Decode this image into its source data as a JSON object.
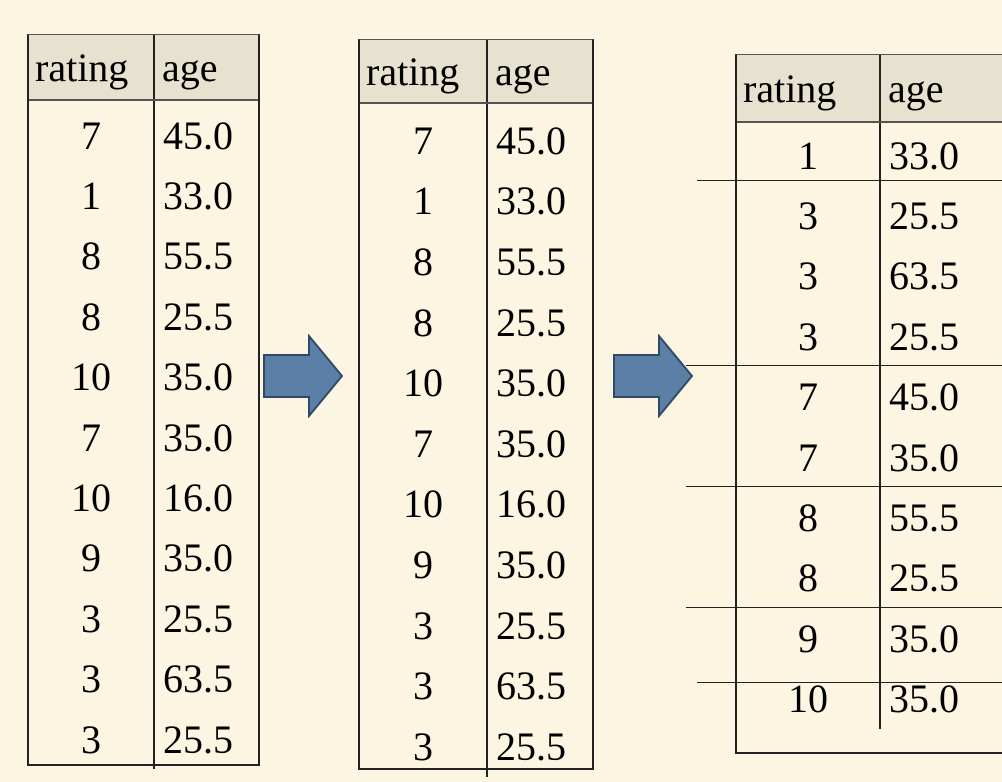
{
  "table_before": {
    "headers": [
      "rating",
      "age"
    ],
    "rows": [
      [
        "7",
        "45.0"
      ],
      [
        "1",
        "33.0"
      ],
      [
        "8",
        "55.5"
      ],
      [
        "8",
        "25.5"
      ],
      [
        "10",
        "35.0"
      ],
      [
        "7",
        "35.0"
      ],
      [
        "10",
        "16.0"
      ],
      [
        "9",
        "35.0"
      ],
      [
        "3",
        "25.5"
      ],
      [
        "3",
        "63.5"
      ],
      [
        "3",
        "25.5"
      ]
    ]
  },
  "table_middle": {
    "headers": [
      "rating",
      "age"
    ],
    "rows": [
      [
        "7",
        "45.0"
      ],
      [
        "1",
        "33.0"
      ],
      [
        "8",
        "55.5"
      ],
      [
        "8",
        "25.5"
      ],
      [
        "10",
        "35.0"
      ],
      [
        "7",
        "35.0"
      ],
      [
        "10",
        "16.0"
      ],
      [
        "9",
        "35.0"
      ],
      [
        "3",
        "25.5"
      ],
      [
        "3",
        "63.5"
      ],
      [
        "3",
        "25.5"
      ]
    ]
  },
  "table_grouped": {
    "headers": [
      "rating",
      "age"
    ],
    "rows": [
      [
        "1",
        "33.0"
      ],
      [
        "3",
        "25.5"
      ],
      [
        "3",
        "63.5"
      ],
      [
        "3",
        "25.5"
      ],
      [
        "7",
        "45.0"
      ],
      [
        "7",
        "35.0"
      ],
      [
        "8",
        "55.5"
      ],
      [
        "8",
        "25.5"
      ],
      [
        "9",
        "35.0"
      ],
      [
        "10",
        "35.0"
      ]
    ]
  },
  "colors": {
    "background": "#fcf5e2",
    "header_fill": "#e7e1cf",
    "arrow_fill": "#5b7fa6",
    "arrow_stroke": "#2f4a66"
  },
  "icons": {
    "arrow1": "right-arrow-icon",
    "arrow2": "right-arrow-icon"
  }
}
